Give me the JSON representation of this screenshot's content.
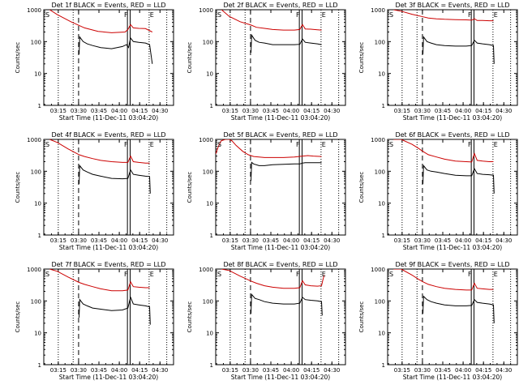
{
  "chart_data": [
    {
      "type": "line",
      "title": "Det 1f BLACK = Events, RED = LLD",
      "xlabel": "Start Time (11-Dec-11 03:04:20)",
      "ylabel": "Counts/sec",
      "xlim": [
        "03:04:20",
        "04:40:00"
      ],
      "ylim": [
        1,
        1000
      ],
      "yscale": "log",
      "x_ticks": [
        "03:15",
        "03:30",
        "03:45",
        "04:00",
        "04:15",
        "04:30"
      ],
      "y_ticks": [
        "1",
        "10",
        "100",
        "1000"
      ],
      "marker_labels": [
        "S",
        "F",
        "E"
      ],
      "markers": {
        "dotted": [
          "03:15",
          "03:26",
          "04:22",
          "04:35"
        ],
        "dashed": "03:30",
        "solid": [
          "04:06",
          "04:08"
        ]
      },
      "series": [
        {
          "color": "#cc0000",
          "x_min": [
            4.3,
            10,
            20,
            30,
            40,
            50,
            60,
            62,
            64,
            66,
            70,
            75,
            80
          ],
          "y": [
            1000,
            700,
            420,
            270,
            210,
            190,
            200,
            240,
            340,
            270,
            260,
            255,
            200
          ]
        },
        {
          "color": "#000000",
          "x_min": [
            26,
            26.5,
            29,
            32,
            36,
            42,
            50,
            58,
            61,
            62.5,
            64,
            66,
            70,
            75,
            78,
            80
          ],
          "y": [
            40,
            140,
            100,
            85,
            75,
            65,
            60,
            70,
            80,
            65,
            130,
            100,
            95,
            90,
            80,
            20
          ]
        }
      ]
    },
    {
      "type": "line",
      "title": "Det 2f BLACK = Events, RED = LLD",
      "xlabel": "Start Time (11-Dec-11 03:04:20)",
      "ylabel": "Counts/sec",
      "xlim": [
        "03:04:20",
        "04:40:00"
      ],
      "ylim": [
        1,
        1000
      ],
      "yscale": "log",
      "x_ticks": [
        "03:15",
        "03:30",
        "03:45",
        "04:00",
        "04:15",
        "04:30"
      ],
      "y_ticks": [
        "1",
        "10",
        "100",
        "1000"
      ],
      "marker_labels": [
        "S",
        "F",
        "E"
      ],
      "markers": {
        "dotted": [
          "03:15",
          "03:26",
          "04:22",
          "04:35"
        ],
        "dashed": "03:30",
        "solid": [
          "04:06",
          "04:08"
        ]
      },
      "series": [
        {
          "color": "#cc0000",
          "x_min": [
            4.3,
            10,
            18,
            26,
            30,
            36,
            42,
            50,
            58,
            62,
            64,
            66,
            70,
            75,
            78
          ],
          "y": [
            1000,
            620,
            420,
            330,
            280,
            260,
            240,
            230,
            230,
            240,
            340,
            250,
            245,
            235,
            230
          ]
        },
        {
          "color": "#000000",
          "x_min": [
            26,
            26.5,
            29,
            32,
            36,
            42,
            50,
            58,
            62,
            64,
            66,
            70,
            75,
            78
          ],
          "y": [
            45,
            160,
            110,
            95,
            90,
            80,
            80,
            80,
            82,
            120,
            95,
            90,
            85,
            80
          ]
        }
      ]
    },
    {
      "type": "line",
      "title": "Det 3f BLACK = Events, RED = LLD",
      "xlabel": "Start Time (11-Dec-11 03:04:20)",
      "ylabel": "Counts/sec",
      "xlim": [
        "03:04:20",
        "04:40:00"
      ],
      "ylim": [
        1,
        1000
      ],
      "yscale": "log",
      "x_ticks": [
        "03:15",
        "03:30",
        "03:45",
        "04:00",
        "04:15",
        "04:30"
      ],
      "y_ticks": [
        "1",
        "10",
        "100",
        "1000"
      ],
      "marker_labels": [
        "S",
        "F",
        "E"
      ],
      "markers": {
        "dotted": [
          "03:15",
          "03:26",
          "04:22",
          "04:35"
        ],
        "dashed": "03:30",
        "solid": [
          "04:06",
          "04:08"
        ]
      },
      "series": [
        {
          "color": "#cc0000",
          "x_min": [
            4.3,
            10,
            18,
            26,
            30,
            36,
            42,
            50,
            58,
            62,
            64,
            66,
            70,
            75,
            78
          ],
          "y": [
            1000,
            900,
            720,
            600,
            550,
            520,
            500,
            490,
            480,
            470,
            520,
            460,
            460,
            450,
            450
          ]
        },
        {
          "color": "#000000",
          "x_min": [
            26,
            26.5,
            29,
            32,
            36,
            42,
            50,
            58,
            62,
            64,
            66,
            70,
            75,
            78,
            78.5
          ],
          "y": [
            40,
            140,
            100,
            90,
            80,
            75,
            72,
            72,
            75,
            110,
            90,
            85,
            80,
            75,
            20
          ]
        }
      ]
    },
    {
      "type": "line",
      "title": "Det 4f BLACK = Events, RED = LLD",
      "xlabel": "Start Time (11-Dec-11 03:04:20)",
      "ylabel": "Counts/sec",
      "xlim": [
        "03:04:20",
        "04:40:00"
      ],
      "ylim": [
        1,
        1000
      ],
      "yscale": "log",
      "x_ticks": [
        "03:15",
        "03:30",
        "03:45",
        "04:00",
        "04:15",
        "04:30"
      ],
      "y_ticks": [
        "1",
        "10",
        "100",
        "1000"
      ],
      "marker_labels": [
        "S",
        "F",
        "E"
      ],
      "markers": {
        "dotted": [
          "03:15",
          "03:26",
          "04:22",
          "04:35"
        ],
        "dashed": "03:30",
        "solid": [
          "04:06",
          "04:08"
        ]
      },
      "series": [
        {
          "color": "#cc0000",
          "x_min": [
            4.3,
            10,
            18,
            26,
            30,
            36,
            42,
            50,
            58,
            62,
            64,
            66,
            70,
            75,
            78
          ],
          "y": [
            1000,
            800,
            500,
            330,
            290,
            250,
            220,
            200,
            190,
            190,
            300,
            200,
            190,
            180,
            180
          ]
        },
        {
          "color": "#000000",
          "x_min": [
            26,
            26.5,
            29,
            32,
            36,
            42,
            50,
            58,
            62,
            64,
            66,
            70,
            75,
            78,
            78.5
          ],
          "y": [
            40,
            150,
            110,
            95,
            80,
            70,
            60,
            58,
            60,
            110,
            80,
            75,
            70,
            68,
            20
          ]
        }
      ]
    },
    {
      "type": "line",
      "title": "Det 5f BLACK = Events, RED = LLD",
      "xlabel": "Start Time (11-Dec-11 03:04:20)",
      "ylabel": "Counts/sec",
      "xlim": [
        "03:04:20",
        "04:40:00"
      ],
      "ylim": [
        1,
        1000
      ],
      "yscale": "log",
      "x_ticks": [
        "03:15",
        "03:30",
        "03:45",
        "04:00",
        "04:15",
        "04:30"
      ],
      "y_ticks": [
        "1",
        "10",
        "100",
        "1000"
      ],
      "marker_labels": [
        "S",
        "F",
        "E"
      ],
      "markers": {
        "dotted": [
          "03:15",
          "03:26",
          "04:22",
          "04:35"
        ],
        "dashed": "03:30",
        "solid": [
          "04:06",
          "04:08"
        ]
      },
      "series": [
        {
          "color": "#cc0000",
          "x_min": [
            0,
            2,
            4,
            7,
            10,
            12,
            15,
            20,
            24,
            28,
            32,
            36,
            42,
            50,
            58,
            64,
            68,
            72,
            78
          ],
          "y": [
            350,
            600,
            900,
            1000,
            1000,
            900,
            650,
            420,
            330,
            290,
            280,
            270,
            270,
            270,
            280,
            300,
            310,
            300,
            290
          ]
        },
        {
          "color": "#000000",
          "x_min": [
            26,
            26.5,
            28,
            32,
            36,
            42,
            50,
            58,
            62,
            64,
            66,
            70,
            75,
            78
          ],
          "y": [
            50,
            190,
            170,
            150,
            150,
            160,
            165,
            170,
            170,
            180,
            185,
            185,
            185,
            185
          ]
        }
      ]
    },
    {
      "type": "line",
      "title": "Det 6f BLACK = Events, RED = LLD",
      "xlabel": "Start Time (11-Dec-11 03:04:20)",
      "ylabel": "Counts/sec",
      "xlim": [
        "03:04:20",
        "04:40:00"
      ],
      "ylim": [
        1,
        1000
      ],
      "yscale": "log",
      "x_ticks": [
        "03:15",
        "03:30",
        "03:45",
        "04:00",
        "04:15",
        "04:30"
      ],
      "y_ticks": [
        "1",
        "10",
        "100",
        "1000"
      ],
      "marker_labels": [
        "S",
        "F",
        "E"
      ],
      "markers": {
        "dotted": [
          "03:15",
          "03:26",
          "04:22",
          "04:35"
        ],
        "dashed": "03:30",
        "solid": [
          "04:06",
          "04:08"
        ]
      },
      "series": [
        {
          "color": "#cc0000",
          "x_min": [
            4.3,
            10,
            18,
            22,
            26,
            30,
            36,
            42,
            50,
            58,
            62,
            64,
            66,
            70,
            75,
            78
          ],
          "y": [
            1000,
            1000,
            700,
            550,
            420,
            330,
            280,
            240,
            210,
            200,
            195,
            360,
            220,
            210,
            200,
            200
          ]
        },
        {
          "color": "#000000",
          "x_min": [
            26,
            26.5,
            29,
            32,
            36,
            42,
            50,
            58,
            62,
            64,
            66,
            70,
            75,
            78,
            78.5
          ],
          "y": [
            40,
            150,
            110,
            100,
            95,
            85,
            75,
            72,
            72,
            120,
            85,
            80,
            78,
            75,
            20
          ]
        }
      ]
    },
    {
      "type": "line",
      "title": "Det 7f BLACK = Events, RED = LLD",
      "xlabel": "Start Time (11-Dec-11 03:04:20)",
      "ylabel": "Counts/sec",
      "xlim": [
        "03:04:20",
        "04:40:00"
      ],
      "ylim": [
        1,
        1000
      ],
      "yscale": "log",
      "x_ticks": [
        "03:15",
        "03:30",
        "03:45",
        "04:00",
        "04:15",
        "04:30"
      ],
      "y_ticks": [
        "1",
        "10",
        "100",
        "1000"
      ],
      "marker_labels": [
        "S",
        "F",
        "E"
      ],
      "markers": {
        "dotted": [
          "03:15",
          "03:26",
          "04:22",
          "04:35"
        ],
        "dashed": "03:30",
        "solid": [
          "04:06",
          "04:08"
        ]
      },
      "series": [
        {
          "color": "#cc0000",
          "x_min": [
            4.3,
            10,
            18,
            26,
            30,
            36,
            42,
            50,
            58,
            62,
            64,
            66,
            70,
            75,
            78
          ],
          "y": [
            1000,
            850,
            560,
            380,
            330,
            280,
            240,
            210,
            210,
            220,
            400,
            280,
            270,
            260,
            260
          ]
        },
        {
          "color": "#000000",
          "x_min": [
            26,
            26.5,
            29,
            32,
            36,
            42,
            50,
            58,
            62,
            64,
            66,
            70,
            75,
            78,
            78.5
          ],
          "y": [
            30,
            110,
            80,
            70,
            60,
            55,
            50,
            52,
            60,
            130,
            80,
            75,
            70,
            65,
            18
          ]
        }
      ]
    },
    {
      "type": "line",
      "title": "Det 8f BLACK = Events, RED = LLD",
      "xlabel": "Start Time (11-Dec-11 03:04:20)",
      "ylabel": "Counts/sec",
      "xlim": [
        "03:04:20",
        "04:40:00"
      ],
      "ylim": [
        1,
        1000
      ],
      "yscale": "log",
      "x_ticks": [
        "03:15",
        "03:30",
        "03:45",
        "04:00",
        "04:15",
        "04:30"
      ],
      "y_ticks": [
        "1",
        "10",
        "100",
        "1000"
      ],
      "marker_labels": [
        "S",
        "F",
        "E"
      ],
      "markers": {
        "dotted": [
          "03:15",
          "03:26",
          "04:22",
          "04:35"
        ],
        "dashed": "03:30",
        "solid": [
          "04:06",
          "04:08"
        ]
      },
      "series": [
        {
          "color": "#cc0000",
          "x_min": [
            4.3,
            10,
            18,
            26,
            30,
            36,
            42,
            50,
            58,
            62,
            64,
            66,
            70,
            75,
            78,
            79,
            80
          ],
          "y": [
            1000,
            900,
            600,
            420,
            360,
            300,
            270,
            250,
            250,
            260,
            430,
            320,
            300,
            290,
            300,
            450,
            650
          ]
        },
        {
          "color": "#000000",
          "x_min": [
            26,
            26.5,
            29,
            32,
            36,
            42,
            50,
            58,
            62,
            64,
            66,
            70,
            75,
            78,
            78.5
          ],
          "y": [
            40,
            160,
            120,
            110,
            95,
            85,
            80,
            80,
            85,
            130,
            110,
            105,
            100,
            95,
            35
          ]
        }
      ]
    },
    {
      "type": "line",
      "title": "Det 9f BLACK = Events, RED = LLD",
      "xlabel": "Start Time (11-Dec-11 03:04:20)",
      "ylabel": "Counts/sec",
      "xlim": [
        "03:04:20",
        "04:40:00"
      ],
      "ylim": [
        1,
        1000
      ],
      "yscale": "log",
      "x_ticks": [
        "03:15",
        "03:30",
        "03:45",
        "04:00",
        "04:15",
        "04:30"
      ],
      "y_ticks": [
        "1",
        "10",
        "100",
        "1000"
      ],
      "marker_labels": [
        "S",
        "F",
        "E"
      ],
      "markers": {
        "dotted": [
          "03:15",
          "03:26",
          "04:22",
          "04:35"
        ],
        "dashed": "03:30",
        "solid": [
          "04:06",
          "04:08"
        ]
      },
      "series": [
        {
          "color": "#cc0000",
          "x_min": [
            4.3,
            10,
            18,
            22,
            26,
            30,
            36,
            42,
            50,
            58,
            62,
            64,
            66,
            70,
            75,
            78
          ],
          "y": [
            1000,
            1000,
            650,
            500,
            400,
            330,
            280,
            250,
            230,
            220,
            220,
            360,
            250,
            240,
            230,
            230
          ]
        },
        {
          "color": "#000000",
          "x_min": [
            26,
            26.5,
            29,
            32,
            36,
            42,
            50,
            58,
            62,
            64,
            66,
            70,
            75,
            78,
            78.5
          ],
          "y": [
            40,
            140,
            110,
            95,
            85,
            75,
            70,
            70,
            72,
            110,
            90,
            85,
            80,
            75,
            20
          ]
        }
      ]
    }
  ]
}
